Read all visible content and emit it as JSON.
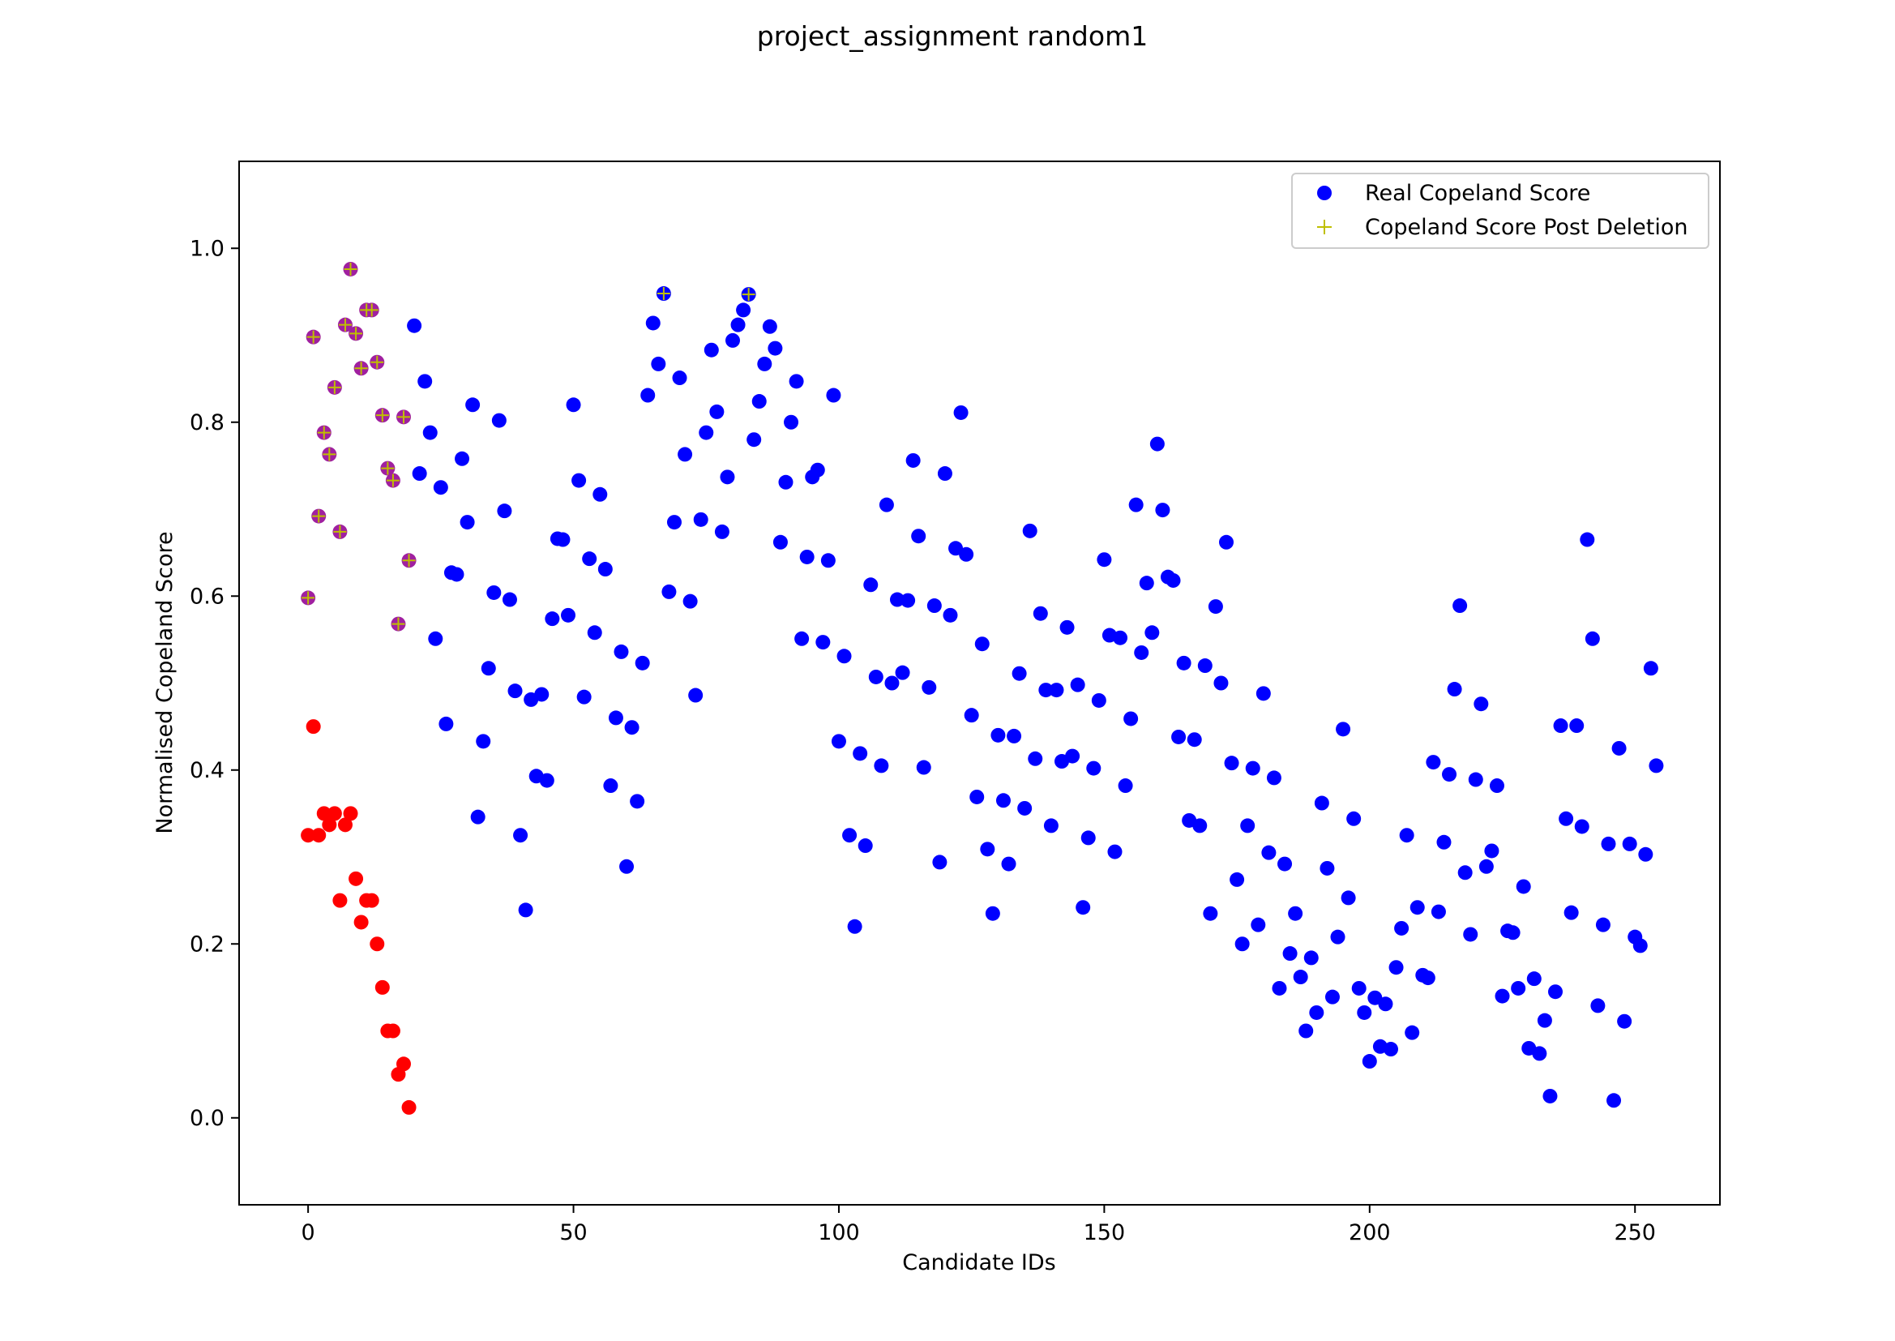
{
  "chart_data": {
    "type": "scatter",
    "title": "project_assignment random1",
    "xlabel": "Candidate IDs",
    "ylabel": "Normalised Copeland Score",
    "xlim": [
      -13,
      266
    ],
    "ylim": [
      -0.1,
      1.1
    ],
    "xticks": [
      0,
      50,
      100,
      150,
      200,
      250
    ],
    "yticks": [
      0.0,
      0.2,
      0.4,
      0.6,
      0.8,
      1.0
    ],
    "xtick_labels": [
      "0",
      "50",
      "100",
      "150",
      "200",
      "250"
    ],
    "ytick_labels": [
      "0.0",
      "0.2",
      "0.4",
      "0.6",
      "0.8",
      "1.0"
    ],
    "grid": false,
    "legend_position": "top-right",
    "colors": {
      "real": "#0000ff",
      "post_deletion": "#bfbf00",
      "deleted": "#ff0000",
      "overlap": "#a020a0"
    },
    "series": [
      {
        "name": "Real Copeland Score",
        "marker": "circle",
        "color": "#0000ff",
        "points": [
          [
            0,
            0.598
          ],
          [
            1,
            0.898
          ],
          [
            2,
            0.692
          ],
          [
            3,
            0.788
          ],
          [
            4,
            0.763
          ],
          [
            5,
            0.84
          ],
          [
            6,
            0.674
          ],
          [
            7,
            0.912
          ],
          [
            8,
            0.976
          ],
          [
            9,
            0.902
          ],
          [
            10,
            0.862
          ],
          [
            11,
            0.929
          ],
          [
            12,
            0.929
          ],
          [
            13,
            0.869
          ],
          [
            14,
            0.808
          ],
          [
            15,
            0.747
          ],
          [
            16,
            0.733
          ],
          [
            17,
            0.568
          ],
          [
            18,
            0.806
          ],
          [
            19,
            0.641
          ],
          [
            20,
            0.911
          ],
          [
            21,
            0.741
          ],
          [
            22,
            0.847
          ],
          [
            23,
            0.788
          ],
          [
            24,
            0.551
          ],
          [
            25,
            0.725
          ],
          [
            26,
            0.453
          ],
          [
            27,
            0.627
          ],
          [
            28,
            0.625
          ],
          [
            29,
            0.758
          ],
          [
            30,
            0.685
          ],
          [
            31,
            0.82
          ],
          [
            32,
            0.346
          ],
          [
            33,
            0.433
          ],
          [
            34,
            0.517
          ],
          [
            35,
            0.604
          ],
          [
            36,
            0.802
          ],
          [
            37,
            0.698
          ],
          [
            38,
            0.596
          ],
          [
            39,
            0.491
          ],
          [
            40,
            0.325
          ],
          [
            41,
            0.239
          ],
          [
            42,
            0.481
          ],
          [
            43,
            0.393
          ],
          [
            44,
            0.487
          ],
          [
            45,
            0.388
          ],
          [
            46,
            0.574
          ],
          [
            47,
            0.666
          ],
          [
            48,
            0.665
          ],
          [
            49,
            0.578
          ],
          [
            50,
            0.82
          ],
          [
            51,
            0.733
          ],
          [
            52,
            0.484
          ],
          [
            53,
            0.643
          ],
          [
            54,
            0.558
          ],
          [
            55,
            0.717
          ],
          [
            56,
            0.631
          ],
          [
            57,
            0.382
          ],
          [
            58,
            0.46
          ],
          [
            59,
            0.536
          ],
          [
            60,
            0.289
          ],
          [
            61,
            0.449
          ],
          [
            62,
            0.364
          ],
          [
            63,
            0.523
          ],
          [
            64,
            0.831
          ],
          [
            65,
            0.914
          ],
          [
            66,
            0.867
          ],
          [
            67,
            0.948
          ],
          [
            68,
            0.605
          ],
          [
            69,
            0.685
          ],
          [
            70,
            0.851
          ],
          [
            71,
            0.763
          ],
          [
            72,
            0.594
          ],
          [
            73,
            0.486
          ],
          [
            74,
            0.688
          ],
          [
            75,
            0.788
          ],
          [
            76,
            0.883
          ],
          [
            77,
            0.812
          ],
          [
            78,
            0.674
          ],
          [
            79,
            0.737
          ],
          [
            80,
            0.894
          ],
          [
            81,
            0.912
          ],
          [
            82,
            0.929
          ],
          [
            83,
            0.947
          ],
          [
            84,
            0.78
          ],
          [
            85,
            0.824
          ],
          [
            86,
            0.867
          ],
          [
            87,
            0.91
          ],
          [
            88,
            0.885
          ],
          [
            89,
            0.662
          ],
          [
            90,
            0.731
          ],
          [
            91,
            0.8
          ],
          [
            92,
            0.847
          ],
          [
            93,
            0.551
          ],
          [
            94,
            0.645
          ],
          [
            95,
            0.737
          ],
          [
            96,
            0.745
          ],
          [
            97,
            0.547
          ],
          [
            98,
            0.641
          ],
          [
            99,
            0.831
          ],
          [
            100,
            0.433
          ],
          [
            101,
            0.531
          ],
          [
            102,
            0.325
          ],
          [
            103,
            0.22
          ],
          [
            104,
            0.419
          ],
          [
            105,
            0.313
          ],
          [
            106,
            0.613
          ],
          [
            107,
            0.507
          ],
          [
            108,
            0.405
          ],
          [
            109,
            0.705
          ],
          [
            110,
            0.5
          ],
          [
            111,
            0.596
          ],
          [
            112,
            0.512
          ],
          [
            113,
            0.595
          ],
          [
            114,
            0.756
          ],
          [
            115,
            0.669
          ],
          [
            116,
            0.403
          ],
          [
            117,
            0.495
          ],
          [
            118,
            0.589
          ],
          [
            119,
            0.294
          ],
          [
            120,
            0.741
          ],
          [
            121,
            0.578
          ],
          [
            122,
            0.655
          ],
          [
            123,
            0.811
          ],
          [
            124,
            0.648
          ],
          [
            125,
            0.463
          ],
          [
            126,
            0.369
          ],
          [
            127,
            0.545
          ],
          [
            128,
            0.309
          ],
          [
            129,
            0.235
          ],
          [
            130,
            0.44
          ],
          [
            131,
            0.365
          ],
          [
            132,
            0.292
          ],
          [
            133,
            0.439
          ],
          [
            134,
            0.511
          ],
          [
            135,
            0.356
          ],
          [
            136,
            0.675
          ],
          [
            137,
            0.413
          ],
          [
            138,
            0.58
          ],
          [
            139,
            0.492
          ],
          [
            140,
            0.336
          ],
          [
            141,
            0.492
          ],
          [
            142,
            0.41
          ],
          [
            143,
            0.564
          ],
          [
            144,
            0.416
          ],
          [
            145,
            0.498
          ],
          [
            146,
            0.242
          ],
          [
            147,
            0.322
          ],
          [
            148,
            0.402
          ],
          [
            149,
            0.48
          ],
          [
            150,
            0.642
          ],
          [
            151,
            0.555
          ],
          [
            152,
            0.306
          ],
          [
            153,
            0.552
          ],
          [
            154,
            0.382
          ],
          [
            155,
            0.459
          ],
          [
            156,
            0.705
          ],
          [
            157,
            0.535
          ],
          [
            158,
            0.615
          ],
          [
            159,
            0.558
          ],
          [
            160,
            0.775
          ],
          [
            161,
            0.699
          ],
          [
            162,
            0.622
          ],
          [
            163,
            0.618
          ],
          [
            164,
            0.438
          ],
          [
            165,
            0.523
          ],
          [
            166,
            0.342
          ],
          [
            167,
            0.435
          ],
          [
            168,
            0.336
          ],
          [
            169,
            0.52
          ],
          [
            170,
            0.235
          ],
          [
            171,
            0.588
          ],
          [
            172,
            0.5
          ],
          [
            173,
            0.662
          ],
          [
            174,
            0.408
          ],
          [
            175,
            0.274
          ],
          [
            176,
            0.2
          ],
          [
            177,
            0.336
          ],
          [
            178,
            0.402
          ],
          [
            179,
            0.222
          ],
          [
            180,
            0.488
          ],
          [
            181,
            0.305
          ],
          [
            182,
            0.391
          ],
          [
            183,
            0.149
          ],
          [
            184,
            0.292
          ],
          [
            185,
            0.189
          ],
          [
            186,
            0.235
          ],
          [
            187,
            0.162
          ],
          [
            188,
            0.1
          ],
          [
            189,
            0.184
          ],
          [
            190,
            0.121
          ],
          [
            191,
            0.362
          ],
          [
            192,
            0.287
          ],
          [
            193,
            0.139
          ],
          [
            194,
            0.208
          ],
          [
            195,
            0.447
          ],
          [
            196,
            0.253
          ],
          [
            197,
            0.344
          ],
          [
            198,
            0.149
          ],
          [
            199,
            0.121
          ],
          [
            200,
            0.065
          ],
          [
            201,
            0.138
          ],
          [
            202,
            0.082
          ],
          [
            203,
            0.131
          ],
          [
            204,
            0.079
          ],
          [
            205,
            0.173
          ],
          [
            206,
            0.218
          ],
          [
            207,
            0.325
          ],
          [
            208,
            0.098
          ],
          [
            209,
            0.242
          ],
          [
            210,
            0.164
          ],
          [
            211,
            0.161
          ],
          [
            212,
            0.409
          ],
          [
            213,
            0.237
          ],
          [
            214,
            0.317
          ],
          [
            215,
            0.395
          ],
          [
            216,
            0.493
          ],
          [
            217,
            0.589
          ],
          [
            218,
            0.282
          ],
          [
            219,
            0.211
          ],
          [
            220,
            0.389
          ],
          [
            221,
            0.476
          ],
          [
            222,
            0.289
          ],
          [
            223,
            0.307
          ],
          [
            224,
            0.382
          ],
          [
            225,
            0.14
          ],
          [
            226,
            0.215
          ],
          [
            227,
            0.213
          ],
          [
            228,
            0.149
          ],
          [
            229,
            0.266
          ],
          [
            230,
            0.08
          ],
          [
            231,
            0.16
          ],
          [
            232,
            0.074
          ],
          [
            233,
            0.112
          ],
          [
            234,
            0.025
          ],
          [
            235,
            0.145
          ],
          [
            236,
            0.451
          ],
          [
            237,
            0.344
          ],
          [
            238,
            0.236
          ],
          [
            239,
            0.451
          ],
          [
            240,
            0.335
          ],
          [
            241,
            0.665
          ],
          [
            242,
            0.551
          ],
          [
            243,
            0.129
          ],
          [
            244,
            0.222
          ],
          [
            245,
            0.315
          ],
          [
            246,
            0.02
          ],
          [
            247,
            0.425
          ],
          [
            248,
            0.111
          ],
          [
            249,
            0.315
          ],
          [
            250,
            0.208
          ],
          [
            251,
            0.198
          ],
          [
            252,
            0.303
          ],
          [
            253,
            0.517
          ],
          [
            254,
            0.405
          ]
        ]
      },
      {
        "name": "Copeland Score Post Deletion",
        "marker": "plus",
        "color": "#bfbf00",
        "points": [
          [
            0,
            0.598
          ],
          [
            1,
            0.898
          ],
          [
            2,
            0.692
          ],
          [
            3,
            0.788
          ],
          [
            4,
            0.763
          ],
          [
            5,
            0.84
          ],
          [
            6,
            0.674
          ],
          [
            7,
            0.912
          ],
          [
            8,
            0.976
          ],
          [
            9,
            0.902
          ],
          [
            10,
            0.862
          ],
          [
            11,
            0.929
          ],
          [
            12,
            0.929
          ],
          [
            13,
            0.869
          ],
          [
            14,
            0.808
          ],
          [
            15,
            0.747
          ],
          [
            16,
            0.733
          ],
          [
            17,
            0.568
          ],
          [
            18,
            0.806
          ],
          [
            19,
            0.641
          ],
          [
            67,
            0.948
          ],
          [
            83,
            0.947
          ]
        ]
      },
      {
        "marker": "circle",
        "color": "#ff0000",
        "points": [
          [
            0,
            0.325
          ],
          [
            1,
            0.45
          ],
          [
            2,
            0.325
          ],
          [
            3,
            0.35
          ],
          [
            4,
            0.337
          ],
          [
            5,
            0.35
          ],
          [
            6,
            0.25
          ],
          [
            7,
            0.337
          ],
          [
            8,
            0.35
          ],
          [
            9,
            0.275
          ],
          [
            10,
            0.225
          ],
          [
            11,
            0.25
          ],
          [
            12,
            0.25
          ],
          [
            13,
            0.2
          ],
          [
            14,
            0.15
          ],
          [
            15,
            0.1
          ],
          [
            16,
            0.1
          ],
          [
            17,
            0.05
          ],
          [
            18,
            0.062
          ],
          [
            19,
            0.012
          ]
        ]
      }
    ]
  },
  "legend": {
    "items": [
      {
        "label": "Real Copeland Score",
        "marker": "circle",
        "color": "#0000ff"
      },
      {
        "label": "Copeland Score Post Deletion",
        "marker": "plus",
        "color": "#bfbf00"
      }
    ]
  }
}
